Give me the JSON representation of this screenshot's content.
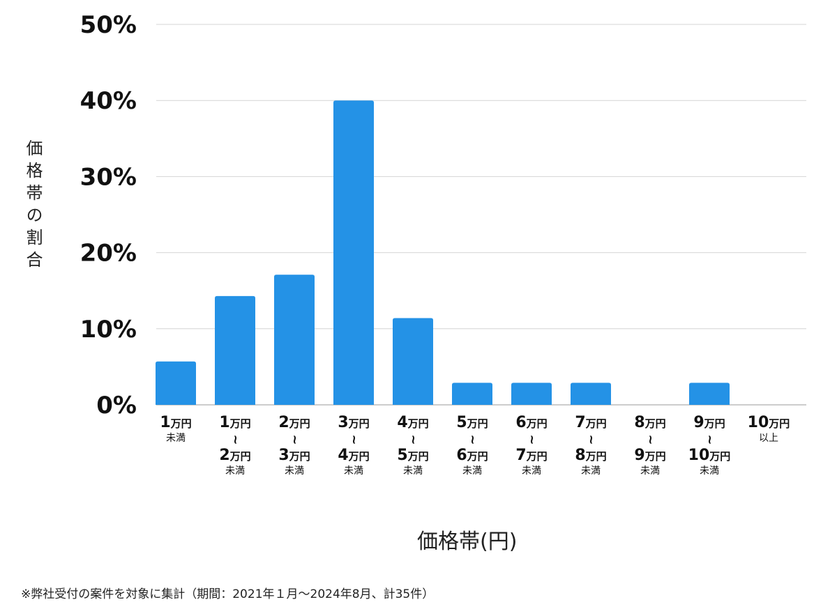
{
  "chart_data": {
    "type": "bar",
    "ylabel": "価格帯の割合",
    "xlabel": "価格帯(円)",
    "ylim": [
      0,
      50
    ],
    "yticks": [
      "0%",
      "10%",
      "20%",
      "30%",
      "40%",
      "50%"
    ],
    "grid": true,
    "bar_color": "#2492e6",
    "categories": [
      [
        "1",
        "万円",
        "未満"
      ],
      [
        "1",
        "万円",
        "〜",
        "2",
        "万円",
        "未満"
      ],
      [
        "2",
        "万円",
        "〜",
        "3",
        "万円",
        "未満"
      ],
      [
        "3",
        "万円",
        "〜",
        "4",
        "万円",
        "未満"
      ],
      [
        "4",
        "万円",
        "〜",
        "5",
        "万円",
        "未満"
      ],
      [
        "5",
        "万円",
        "〜",
        "6",
        "万円",
        "未満"
      ],
      [
        "6",
        "万円",
        "〜",
        "7",
        "万円",
        "未満"
      ],
      [
        "7",
        "万円",
        "〜",
        "8",
        "万円",
        "未満"
      ],
      [
        "8",
        "万円",
        "〜",
        "9",
        "万円",
        "未満"
      ],
      [
        "9",
        "万円",
        "〜",
        "10",
        "万円",
        "未満"
      ],
      [
        "10",
        "万円",
        "以上"
      ]
    ],
    "values": [
      5.7,
      14.3,
      17.1,
      40.0,
      11.4,
      2.9,
      2.9,
      2.9,
      0,
      2.9,
      0
    ]
  },
  "note": "※弊社受付の案件を対象に集計（期間：2021年１月〜2024年8月、計35件）"
}
